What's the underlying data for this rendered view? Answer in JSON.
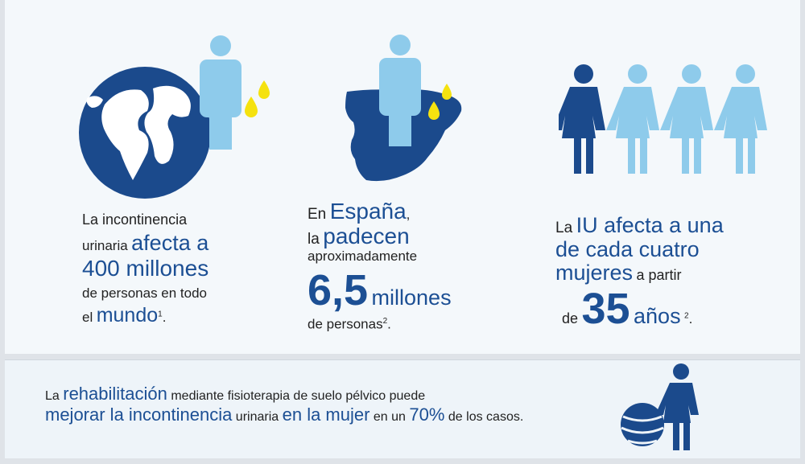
{
  "colors": {
    "dark_blue": "#1b4a8c",
    "light_blue": "#8ecbeb",
    "drop_yellow": "#f5e20f",
    "text_dark": "#222222"
  },
  "col1": {
    "l1": "La incontinencia",
    "l2a": "urinaria",
    "l2b": "afecta a",
    "l3": "400 millones",
    "l4": "de personas en todo",
    "l5a": "el",
    "l5b": "mundo",
    "l5sup": "1",
    "l5c": "."
  },
  "col2": {
    "l1a": "En",
    "l1b": "España",
    "l1c": ",",
    "l2a": "la",
    "l2b": "padecen",
    "l3": "aproximadamente",
    "l4a": "6,5",
    "l4b": "millones",
    "l5a": "de personas",
    "l5sup": "2",
    "l5c": "."
  },
  "col3": {
    "l1a": "La",
    "l1b": "IU afecta a una",
    "l2": "de cada cuatro",
    "l3a": "mujeres",
    "l3b": "a partir",
    "l4a": "de",
    "l4b": "35",
    "l4c": "años",
    "l4sup": "2",
    "l4d": "."
  },
  "bottom": {
    "p1": "La",
    "p2": "rehabilitación",
    "p3": "mediante fisioterapia de suelo pélvico puede",
    "p4": "mejorar la incontinencia",
    "p5": "urinaria",
    "p6": "en la mujer",
    "p7": "en un",
    "p8": "70%",
    "p9": "de los casos."
  },
  "icons": [
    "globe-icon",
    "person-icon",
    "water-drop-icon",
    "spain-map-icon",
    "woman-icon",
    "exercise-ball-icon"
  ]
}
